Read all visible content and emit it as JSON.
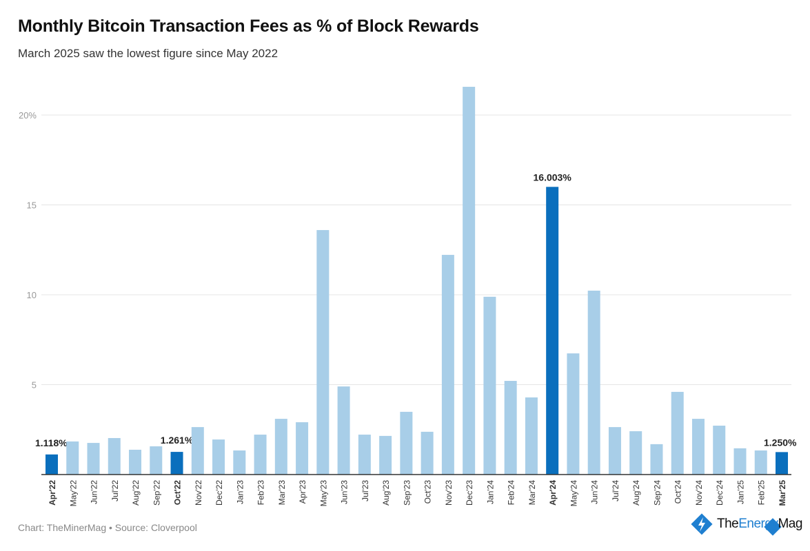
{
  "title": "Monthly Bitcoin Transaction Fees as % of Block Rewards",
  "subtitle": "March 2025 saw the lowest figure since May 2022",
  "footer": "Chart: TheMinerMag • Source: Cloverpool",
  "logo": {
    "text_a": "The",
    "text_b": "Energy",
    "text_c": "Mag"
  },
  "colors": {
    "highlight": "#0a6fbd",
    "normal": "#a8cee8",
    "grid": "#e4e4e4",
    "axis": "#333333"
  },
  "chart_data": {
    "type": "bar",
    "title": "Monthly Bitcoin Transaction Fees as % of Block Rewards",
    "xlabel": "",
    "ylabel": "",
    "ylim": [
      0,
      22
    ],
    "yticks": [
      5,
      10,
      15,
      20
    ],
    "ytick_labels": [
      "5",
      "10",
      "15",
      "20%"
    ],
    "grid": true,
    "categories": [
      "Apr'22",
      "May'22",
      "Jun'22",
      "Jul'22",
      "Aug'22",
      "Sep'22",
      "Oct'22",
      "Nov'22",
      "Dec'22",
      "Jan'23",
      "Feb'23",
      "Mar'23",
      "Apr'23",
      "May'23",
      "Jun'23",
      "Jul'23",
      "Aug'23",
      "Sep'23",
      "Oct'23",
      "Nov'23",
      "Dec'23",
      "Jan'24",
      "Feb'24",
      "Mar'24",
      "Apr'24",
      "May'24",
      "Jun'24",
      "Jul'24",
      "Aug'24",
      "Sep'24",
      "Oct'24",
      "Nov'24",
      "Dec'24",
      "Jan'25",
      "Feb'25",
      "Mar'25"
    ],
    "values": [
      1.118,
      1.84,
      1.76,
      2.03,
      1.38,
      1.57,
      1.261,
      2.64,
      1.95,
      1.34,
      2.22,
      3.1,
      2.91,
      13.6,
      4.9,
      2.22,
      2.15,
      3.49,
      2.38,
      12.22,
      21.57,
      9.89,
      5.21,
      4.29,
      16.003,
      6.74,
      10.23,
      2.64,
      2.41,
      1.69,
      4.6,
      3.1,
      2.72,
      1.46,
      1.34,
      1.25
    ],
    "highlighted": [
      "Apr'22",
      "Oct'22",
      "Apr'24",
      "Mar'25"
    ],
    "data_labels": {
      "Apr'22": "1.118%",
      "Oct'22": "1.261%",
      "Apr'24": "16.003%",
      "Mar'25": "1.250%"
    }
  }
}
